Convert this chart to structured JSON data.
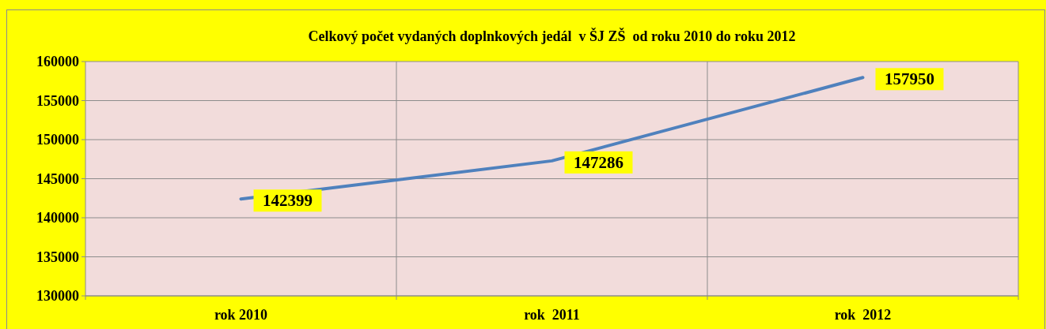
{
  "chart_data": {
    "type": "line",
    "title": "Celkový počet vydaných doplnkových jedál  v ŠJ ZŠ  od roku 2010 do roku 2012",
    "categories": [
      "rok 2010",
      "rok  2011",
      "rok  2012"
    ],
    "series": [
      {
        "color": "#4f81bd",
        "values": [
          142399,
          147286,
          157950
        ]
      }
    ],
    "ylim": [
      130000,
      160000
    ],
    "yticks": [
      130000,
      135000,
      140000,
      145000,
      150000,
      155000,
      160000
    ],
    "grid": true,
    "data_labels": true,
    "marker": "none",
    "line_style": "solid"
  }
}
